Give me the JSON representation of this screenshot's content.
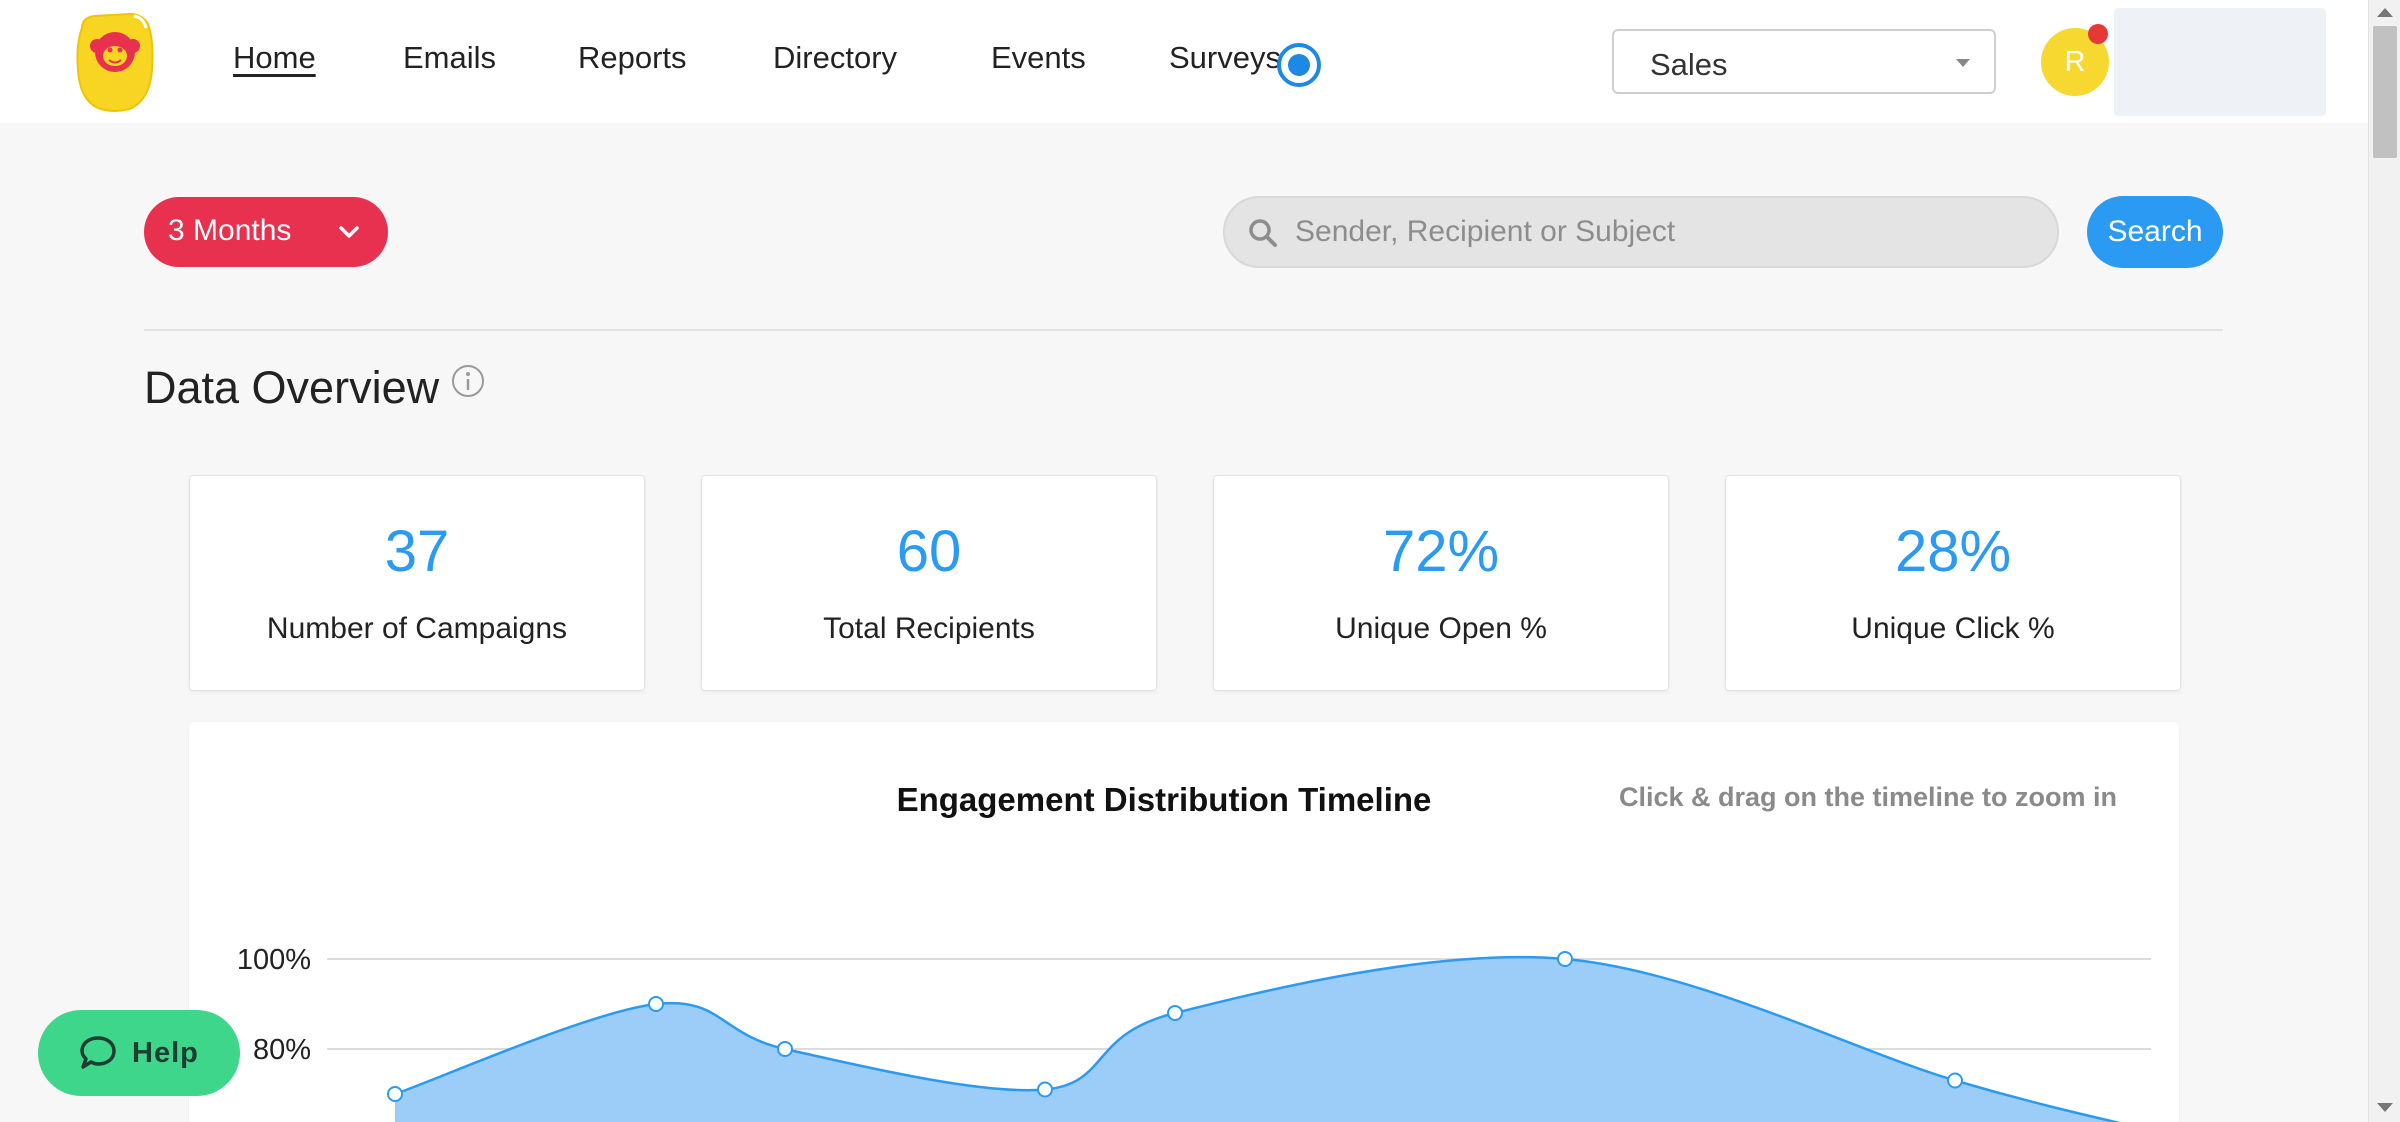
{
  "header": {
    "nav": [
      {
        "label": "Home",
        "active": true
      },
      {
        "label": "Emails"
      },
      {
        "label": "Reports"
      },
      {
        "label": "Directory"
      },
      {
        "label": "Events"
      },
      {
        "label": "Surveys"
      }
    ],
    "department_select": {
      "value": "Sales"
    },
    "avatar_initial": "R"
  },
  "toolbar": {
    "period_label": "3 Months",
    "search_placeholder": "Sender, Recipient or Subject",
    "search_button": "Search"
  },
  "overview": {
    "title": "Data Overview",
    "stats": [
      {
        "value": "37",
        "label": "Number of Campaigns"
      },
      {
        "value": "60",
        "label": "Total Recipients"
      },
      {
        "value": "72%",
        "label": "Unique Open %"
      },
      {
        "value": "28%",
        "label": "Unique Click %"
      }
    ]
  },
  "chart_data": {
    "type": "area",
    "title": "Engagement Distribution Timeline",
    "hint": "Click & drag on the timeline to zoom in",
    "y_ticks": [
      "100%",
      "80%"
    ],
    "values": [
      70,
      90,
      80,
      71,
      88,
      100,
      73,
      62
    ],
    "ylim": [
      60,
      100
    ],
    "grid": true,
    "color": "#9bcdf8",
    "line_color": "#2b9af3"
  },
  "help": {
    "label": "Help"
  },
  "colors": {
    "accent_red": "#e8304f",
    "accent_blue": "#2b9af3",
    "help_green": "#3ed68a"
  }
}
